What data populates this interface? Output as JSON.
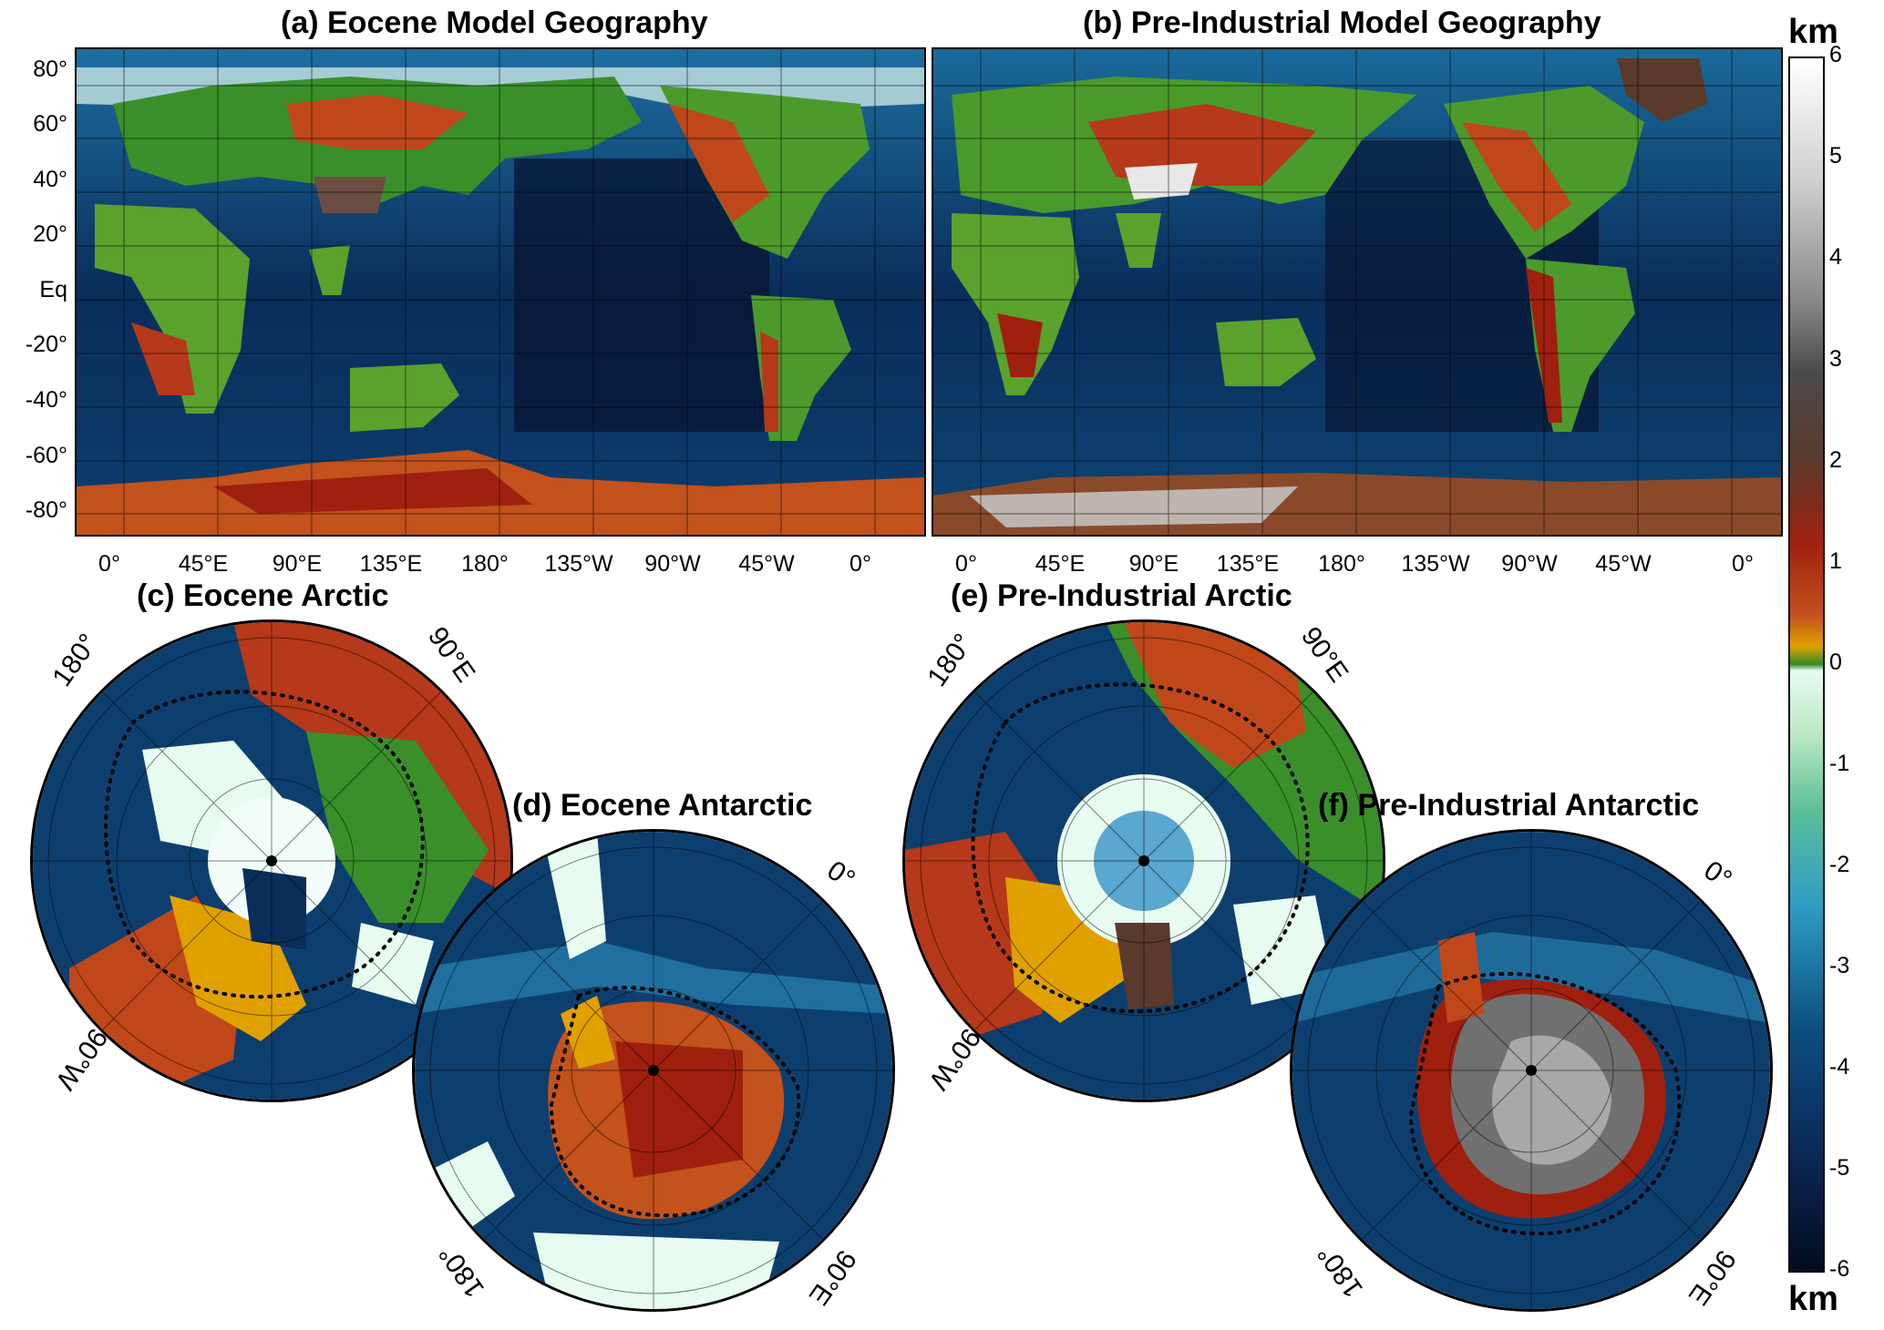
{
  "panels": {
    "a": {
      "title": "(a) Eocene Model Geography"
    },
    "b": {
      "title": "(b) Pre-Industrial Model Geography"
    },
    "c": {
      "title": "(c) Eocene Arctic",
      "labels": {
        "lon180": "180°",
        "lon90e": "90°E",
        "lon90w": "90°W"
      }
    },
    "d": {
      "title": "(d) Eocene Antarctic",
      "labels": {
        "lon0": "0°",
        "lon180": "180°",
        "lon90e": "90°E"
      }
    },
    "e": {
      "title": "(e) Pre-Industrial Arctic",
      "labels": {
        "lon180": "180°",
        "lon90e": "90°E",
        "lon90w": "90°W"
      }
    },
    "f": {
      "title": "(f) Pre-Industrial Antarctic",
      "labels": {
        "lon0": "0°",
        "lon180": "180°",
        "lon90e": "90°E"
      }
    }
  },
  "axes": {
    "lat_ticks": [
      "80°",
      "60°",
      "40°",
      "20°",
      "Eq",
      "-20°",
      "-40°",
      "-60°",
      "-80°"
    ],
    "lon_ticks": [
      "0°",
      "45°E",
      "90°E",
      "135°E",
      "180°",
      "135°W",
      "90°W",
      "45°W",
      "0°"
    ]
  },
  "colorbar": {
    "unit_top": "km",
    "unit_bottom": "km",
    "ticks": [
      "6",
      "5",
      "4",
      "3",
      "2",
      "1",
      "0",
      "-1",
      "-2",
      "-3",
      "-4",
      "-5",
      "-6"
    ],
    "range": [
      -6,
      6
    ],
    "colors": {
      "ocean_deep": "#07112e",
      "ocean_mid": "#0b4f80",
      "ocean_shallow": "#2d9cc4",
      "shelf": "#e8fbf1",
      "lowland": "#2f8a2a",
      "upland": "#e0a100",
      "highland": "#a0200f",
      "mountain": "#5a3a2c",
      "ice_high": "#ffffff"
    }
  }
}
